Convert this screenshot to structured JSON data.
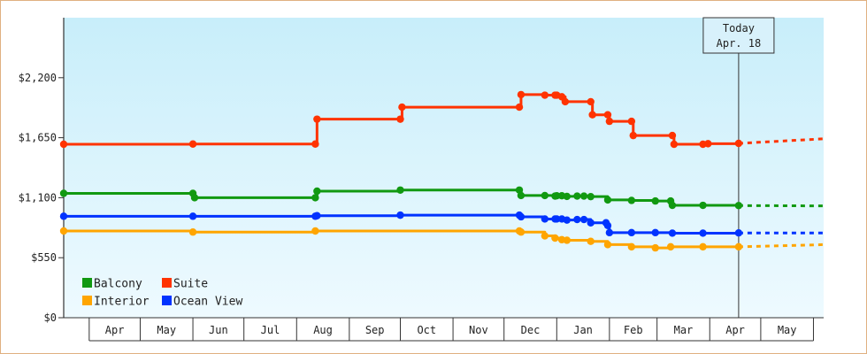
{
  "chart_data": {
    "type": "line",
    "title": "",
    "xlabel": "",
    "ylabel": "",
    "ylim": [
      0,
      2750
    ],
    "y_ticks": [
      {
        "value": 0,
        "label": "$0"
      },
      {
        "value": 550,
        "label": "$550"
      },
      {
        "value": 1100,
        "label": "$1,100"
      },
      {
        "value": 1650,
        "label": "$1,650"
      },
      {
        "value": 2200,
        "label": "$2,200"
      }
    ],
    "x_axis": {
      "start": "2025-03-17",
      "end": "2026-06-07",
      "months": [
        {
          "label": "Apr",
          "start": "2025-04-01",
          "end": "2025-05-01"
        },
        {
          "label": "May",
          "start": "2025-05-01",
          "end": "2025-06-01"
        },
        {
          "label": "Jun",
          "start": "2025-06-01",
          "end": "2025-07-01"
        },
        {
          "label": "Jul",
          "start": "2025-07-01",
          "end": "2025-08-01"
        },
        {
          "label": "Aug",
          "start": "2025-08-01",
          "end": "2025-09-01"
        },
        {
          "label": "Sep",
          "start": "2025-09-01",
          "end": "2025-10-01"
        },
        {
          "label": "Oct",
          "start": "2025-10-01",
          "end": "2025-11-01"
        },
        {
          "label": "Nov",
          "start": "2025-11-01",
          "end": "2025-12-01"
        },
        {
          "label": "Dec",
          "start": "2025-12-01",
          "end": "2026-01-01"
        },
        {
          "label": "Jan",
          "start": "2026-01-01",
          "end": "2026-02-01"
        },
        {
          "label": "Feb",
          "start": "2026-02-01",
          "end": "2026-03-01"
        },
        {
          "label": "Mar",
          "start": "2026-03-01",
          "end": "2026-04-01"
        },
        {
          "label": "Apr",
          "start": "2026-04-01",
          "end": "2026-05-01"
        },
        {
          "label": "May",
          "start": "2026-05-01",
          "end": "2026-06-01"
        }
      ]
    },
    "today": {
      "date": "2026-04-18",
      "label_line1": "Today",
      "label_line2": "Apr. 18"
    },
    "legend": {
      "placement": "bottom-left"
    },
    "series": [
      {
        "name": "Suite",
        "color": "#ff3300",
        "points": [
          [
            "2025-03-17",
            1590
          ],
          [
            "2025-06-01",
            1592
          ],
          [
            "2025-08-12",
            1592
          ],
          [
            "2025-08-13",
            1820
          ],
          [
            "2025-10-01",
            1820
          ],
          [
            "2025-10-02",
            1930
          ],
          [
            "2025-12-10",
            1930
          ],
          [
            "2025-12-11",
            2045
          ],
          [
            "2025-12-25",
            2040
          ],
          [
            "2025-12-31",
            2040
          ],
          [
            "2026-01-01",
            2040
          ],
          [
            "2026-01-04",
            2025
          ],
          [
            "2026-01-06",
            1980
          ],
          [
            "2026-01-21",
            1980
          ],
          [
            "2026-01-22",
            1860
          ],
          [
            "2026-01-31",
            1860
          ],
          [
            "2026-02-01",
            1800
          ],
          [
            "2026-02-14",
            1800
          ],
          [
            "2026-02-15",
            1670
          ],
          [
            "2026-03-10",
            1670
          ],
          [
            "2026-03-11",
            1590
          ],
          [
            "2026-03-28",
            1590
          ],
          [
            "2026-03-31",
            1595
          ],
          [
            "2026-04-18",
            1598
          ]
        ],
        "projection": [
          [
            "2026-04-18",
            1598
          ],
          [
            "2026-06-07",
            1640
          ]
        ]
      },
      {
        "name": "Balcony",
        "color": "#119911",
        "points": [
          [
            "2025-03-17",
            1140
          ],
          [
            "2025-06-01",
            1140
          ],
          [
            "2025-06-02",
            1100
          ],
          [
            "2025-08-12",
            1100
          ],
          [
            "2025-08-13",
            1160
          ],
          [
            "2025-10-01",
            1170
          ],
          [
            "2025-12-10",
            1170
          ],
          [
            "2025-12-11",
            1120
          ],
          [
            "2025-12-25",
            1120
          ],
          [
            "2025-12-31",
            1115
          ],
          [
            "2026-01-01",
            1118
          ],
          [
            "2026-01-04",
            1118
          ],
          [
            "2026-01-07",
            1112
          ],
          [
            "2026-01-13",
            1115
          ],
          [
            "2026-01-17",
            1115
          ],
          [
            "2026-01-21",
            1110
          ],
          [
            "2026-01-31",
            1080
          ],
          [
            "2026-02-14",
            1075
          ],
          [
            "2026-02-28",
            1070
          ],
          [
            "2026-03-09",
            1070
          ],
          [
            "2026-03-10",
            1030
          ],
          [
            "2026-03-28",
            1030
          ],
          [
            "2026-04-18",
            1028
          ]
        ],
        "projection": [
          [
            "2026-04-18",
            1028
          ],
          [
            "2026-06-07",
            1025
          ]
        ]
      },
      {
        "name": "Ocean View",
        "color": "#0033ff",
        "points": [
          [
            "2025-03-17",
            930
          ],
          [
            "2025-06-01",
            930
          ],
          [
            "2025-08-12",
            930
          ],
          [
            "2025-08-13",
            935
          ],
          [
            "2025-10-01",
            940
          ],
          [
            "2025-12-10",
            940
          ],
          [
            "2025-12-11",
            925
          ],
          [
            "2025-12-25",
            905
          ],
          [
            "2025-12-31",
            905
          ],
          [
            "2026-01-01",
            905
          ],
          [
            "2026-01-04",
            905
          ],
          [
            "2026-01-07",
            895
          ],
          [
            "2026-01-13",
            900
          ],
          [
            "2026-01-17",
            900
          ],
          [
            "2026-01-21",
            870
          ],
          [
            "2026-01-30",
            870
          ],
          [
            "2026-01-31",
            845
          ],
          [
            "2026-02-01",
            780
          ],
          [
            "2026-02-14",
            780
          ],
          [
            "2026-02-28",
            780
          ],
          [
            "2026-03-10",
            775
          ],
          [
            "2026-03-28",
            775
          ],
          [
            "2026-04-18",
            777
          ]
        ],
        "projection": [
          [
            "2026-04-18",
            777
          ],
          [
            "2026-06-07",
            777
          ]
        ]
      },
      {
        "name": "Interior",
        "color": "#ffa500",
        "points": [
          [
            "2025-03-17",
            795
          ],
          [
            "2025-06-01",
            785
          ],
          [
            "2025-08-12",
            795
          ],
          [
            "2025-12-10",
            795
          ],
          [
            "2025-12-11",
            785
          ],
          [
            "2025-12-25",
            750
          ],
          [
            "2025-12-31",
            730
          ],
          [
            "2026-01-04",
            715
          ],
          [
            "2026-01-07",
            710
          ],
          [
            "2026-01-21",
            700
          ],
          [
            "2026-01-31",
            670
          ],
          [
            "2026-02-14",
            650
          ],
          [
            "2026-02-28",
            640
          ],
          [
            "2026-03-09",
            650
          ],
          [
            "2026-03-28",
            650
          ],
          [
            "2026-04-18",
            650
          ]
        ],
        "projection": [
          [
            "2026-04-18",
            650
          ],
          [
            "2026-06-07",
            670
          ]
        ]
      }
    ]
  }
}
